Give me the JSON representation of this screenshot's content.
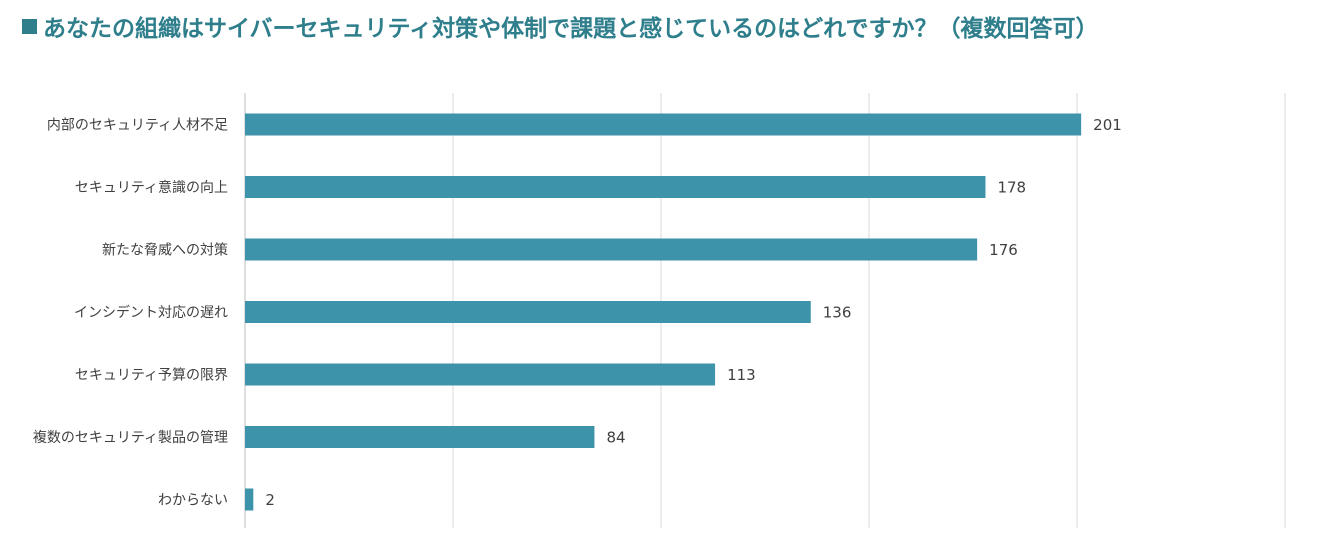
{
  "title": "あなたの組織はサイバーセキュリティ対策や体制で課題と感じているのはどれですか？（複数回答可）",
  "colors": {
    "title": "#2e7e8c",
    "title_marker": "#2e7e8c",
    "bar": "#3d93aa",
    "grid": "#d9d9d9",
    "axis": "#bfbfbf",
    "text": "#404040"
  },
  "chart_data": {
    "type": "bar",
    "orientation": "horizontal",
    "categories": [
      "内部のセキュリティ人材不足",
      "セキュリティ意識の向上",
      "新たな脅威への対策",
      "インシデント対応の遅れ",
      "セキュリティ予算の限界",
      "複数のセキュリティ製品の管理",
      "わからない"
    ],
    "values": [
      201,
      178,
      176,
      136,
      113,
      84,
      2
    ],
    "xlim": [
      0,
      250
    ],
    "grid": true,
    "data_labels": true
  }
}
